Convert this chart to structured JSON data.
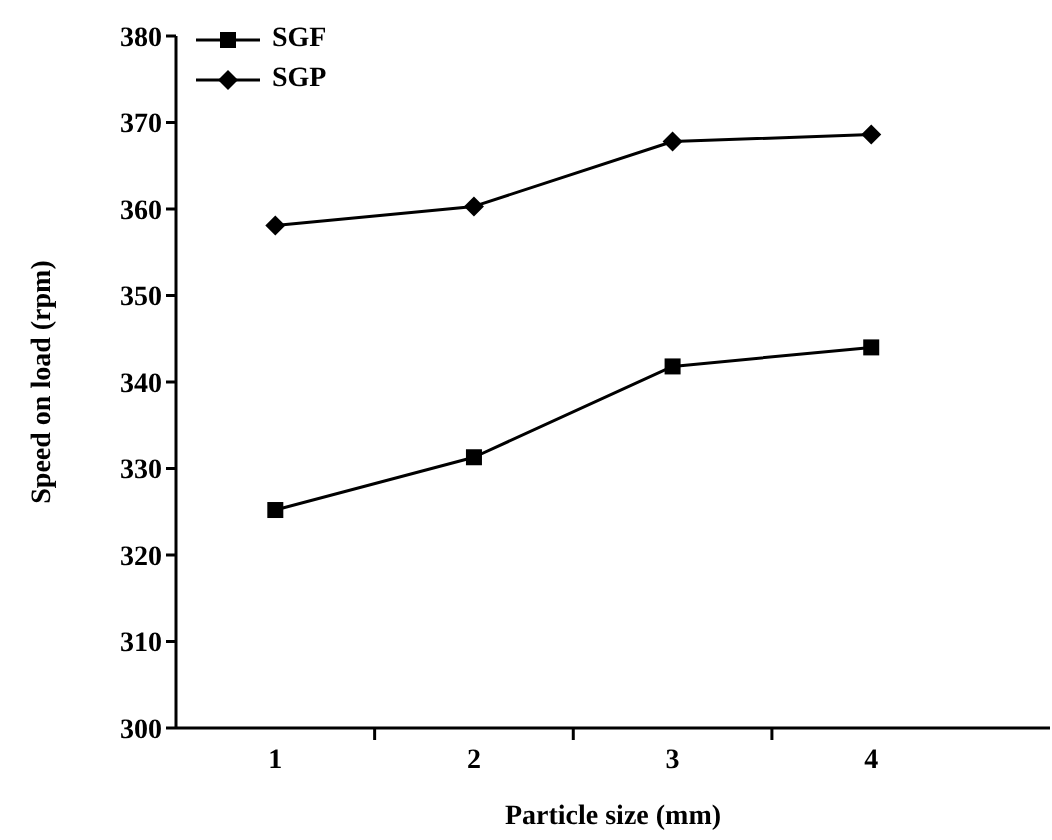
{
  "chart_data": {
    "type": "line",
    "xlabel": "Particle size (mm)",
    "ylabel": "Speed on load (rpm)",
    "categories": [
      "1",
      "2",
      "3",
      "4"
    ],
    "series": [
      {
        "name": "SGF",
        "color": "#000000",
        "marker": "square",
        "values": [
          325.2,
          331.3,
          341.8,
          344.0
        ]
      },
      {
        "name": "SGP",
        "color": "#000000",
        "marker": "diamond",
        "values": [
          358.1,
          360.3,
          367.8,
          368.6
        ]
      }
    ],
    "ylim": [
      300,
      380
    ],
    "yticks": [
      300,
      310,
      320,
      330,
      340,
      350,
      360,
      370,
      380
    ],
    "grid": false,
    "legend": "top left",
    "line_style": "solid"
  }
}
